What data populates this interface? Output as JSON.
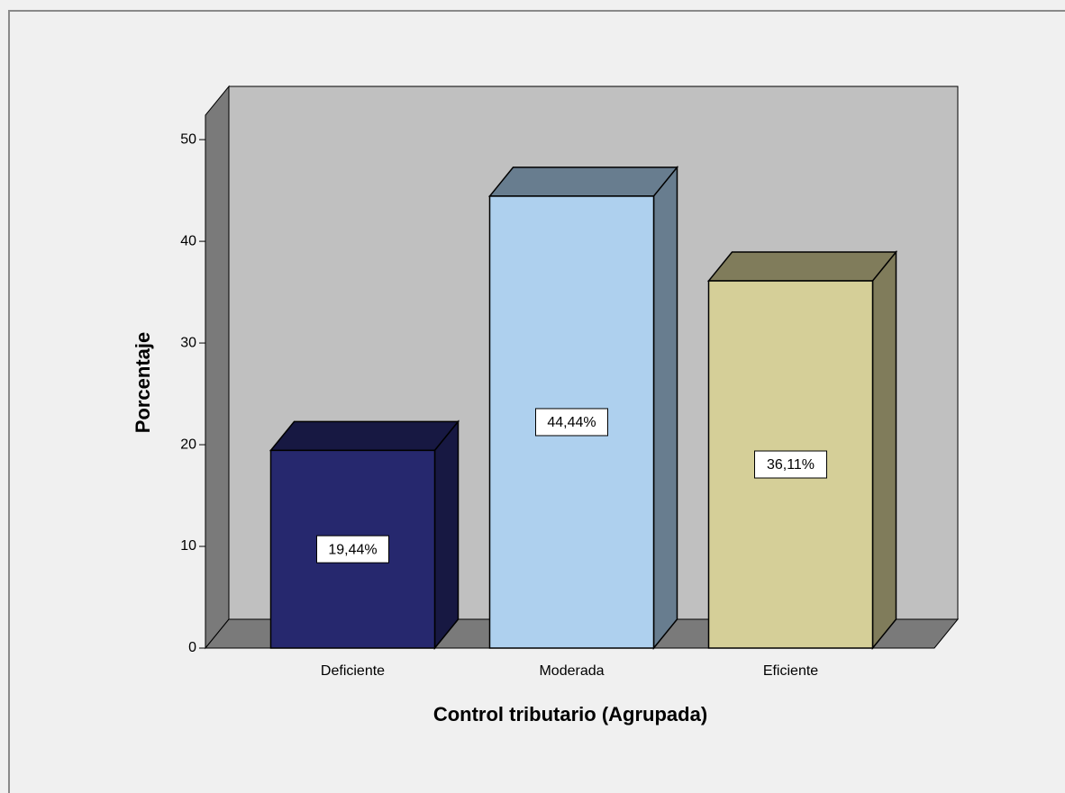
{
  "chart_data": {
    "type": "bar3d",
    "x_label": "Control tributario (Agrupada)",
    "y_label": "Porcentaje",
    "categories": [
      "Deficiente",
      "Moderada",
      "Eficiente"
    ],
    "values": [
      19.44,
      44.44,
      36.11
    ],
    "value_labels": [
      "19,44%",
      "44,44%",
      "36,11%"
    ],
    "colors": [
      "#26286e",
      "#aed0ee",
      "#d5cf98"
    ],
    "ylim": [
      0,
      52.4
    ],
    "yticks": [
      0,
      10,
      20,
      30,
      40,
      50
    ]
  }
}
